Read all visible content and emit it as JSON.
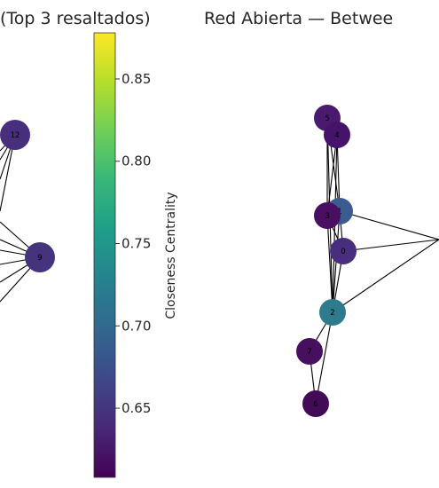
{
  "left_panel": {
    "title": "(Top 3 resaltados)",
    "nodes": [
      {
        "label": "12",
        "value": 0.66
      },
      {
        "label": "9",
        "value": 0.655
      }
    ]
  },
  "colorbar": {
    "label": "Closeness Centrality",
    "min": 0.608,
    "max": 0.878,
    "ticks": [
      {
        "value": 0.85,
        "label": "0.85"
      },
      {
        "value": 0.8,
        "label": "0.80"
      },
      {
        "value": 0.75,
        "label": "0.75"
      },
      {
        "value": 0.7,
        "label": "0.70"
      },
      {
        "value": 0.65,
        "label": "0.65"
      }
    ],
    "colormap": [
      "#440154",
      "#482878",
      "#3e4989",
      "#31688e",
      "#26828e",
      "#1f9e89",
      "#35b779",
      "#6ece58",
      "#b5de2b",
      "#fde725"
    ]
  },
  "right_panel": {
    "title": "Red Abierta — Betwee",
    "nodes": [
      {
        "label": "5",
        "color": "#4a1a6e"
      },
      {
        "label": "4",
        "color": "#45146a"
      },
      {
        "label": "1",
        "color": "#3c5b8f"
      },
      {
        "label": "3",
        "color": "#4a0f63"
      },
      {
        "label": "0",
        "color": "#472f7d"
      },
      {
        "label": "2",
        "color": "#2d7b8d"
      },
      {
        "label": "7",
        "color": "#46105f"
      },
      {
        "label": "6",
        "color": "#430a57"
      }
    ],
    "edges": [
      [
        "5",
        "4"
      ],
      [
        "5",
        "1"
      ],
      [
        "5",
        "3"
      ],
      [
        "4",
        "1"
      ],
      [
        "4",
        "3"
      ],
      [
        "5",
        "2"
      ],
      [
        "4",
        "2"
      ],
      [
        "1",
        "3"
      ],
      [
        "1",
        "0"
      ],
      [
        "1",
        "2"
      ],
      [
        "3",
        "0"
      ],
      [
        "3",
        "2"
      ],
      [
        "0",
        "2"
      ],
      [
        "2",
        "7"
      ],
      [
        "2",
        "6"
      ],
      [
        "7",
        "6"
      ],
      [
        "1",
        "off"
      ],
      [
        "0",
        "off"
      ],
      [
        "2",
        "off"
      ]
    ]
  }
}
